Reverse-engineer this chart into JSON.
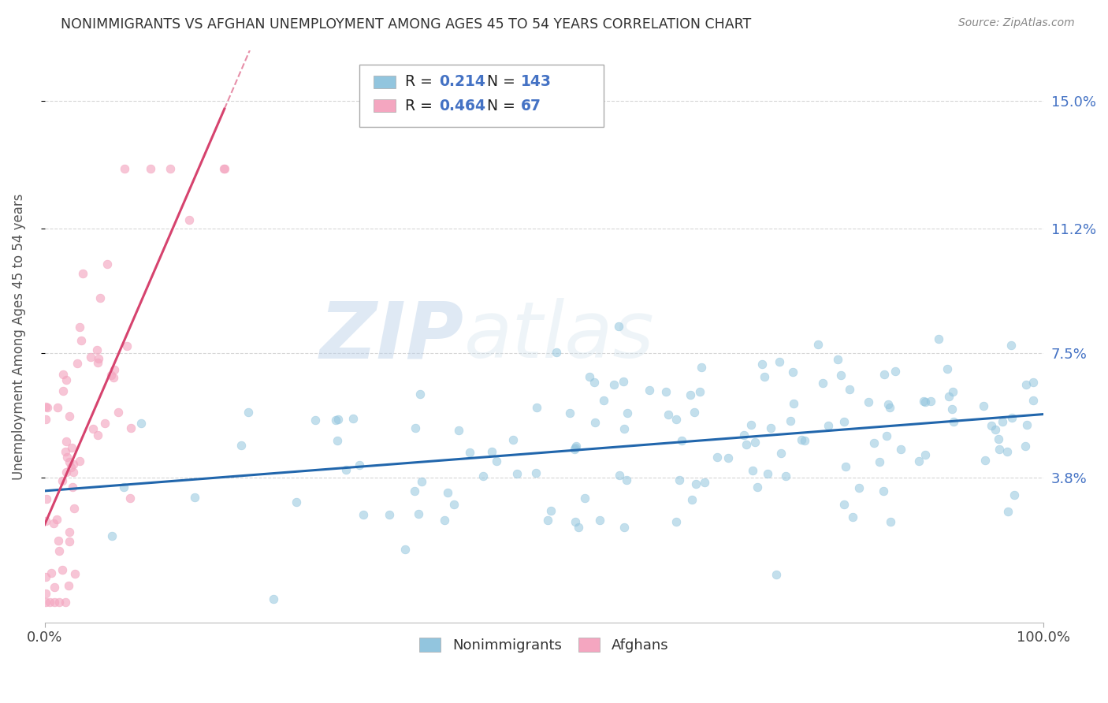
{
  "title": "NONIMMIGRANTS VS AFGHAN UNEMPLOYMENT AMONG AGES 45 TO 54 YEARS CORRELATION CHART",
  "source": "Source: ZipAtlas.com",
  "ylabel": "Unemployment Among Ages 45 to 54 years",
  "xlim": [
    0,
    1.0
  ],
  "ylim": [
    -0.005,
    0.165
  ],
  "yticks": [
    0.038,
    0.075,
    0.112,
    0.15
  ],
  "ytick_labels": [
    "3.8%",
    "7.5%",
    "11.2%",
    "15.0%"
  ],
  "nonimm_R": 0.214,
  "nonimm_N": 143,
  "afghan_R": 0.464,
  "afghan_N": 67,
  "nonimm_color": "#92c5de",
  "afghan_color": "#f4a6c0",
  "nonimm_line_color": "#2166ac",
  "afghan_line_color": "#d6436e",
  "legend_label_nonimm": "Nonimmigrants",
  "legend_label_afghan": "Afghans",
  "watermark_zip": "ZIP",
  "watermark_atlas": "atlas",
  "background_color": "#ffffff",
  "grid_color": "#cccccc",
  "title_color": "#333333",
  "tick_color_right": "#4472c4",
  "seed": 17
}
